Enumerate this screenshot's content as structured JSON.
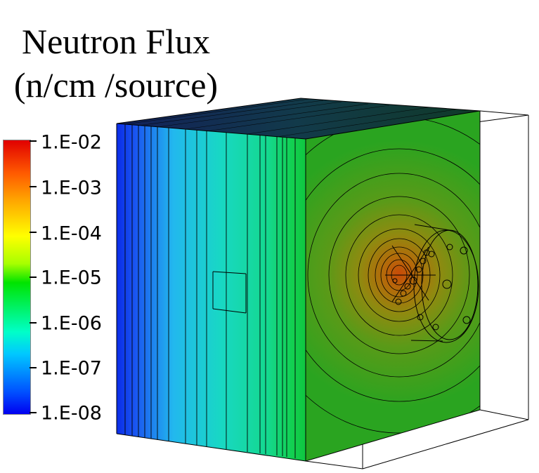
{
  "title": {
    "line1": "Neutron Flux",
    "line2": "(n/cm /source)"
  },
  "colorbar": {
    "ticks": [
      "1.E-02",
      "1.E-03",
      "1.E-04",
      "1.E-05",
      "1.E-06",
      "1.E-07",
      "1.E-08"
    ],
    "colors": [
      "#e10000",
      "#ff5a00",
      "#ffa600",
      "#ffff00",
      "#a8ff00",
      "#00e400",
      "#00ffc8",
      "#00c8ff",
      "#0050ff",
      "#0000f0"
    ]
  }
}
